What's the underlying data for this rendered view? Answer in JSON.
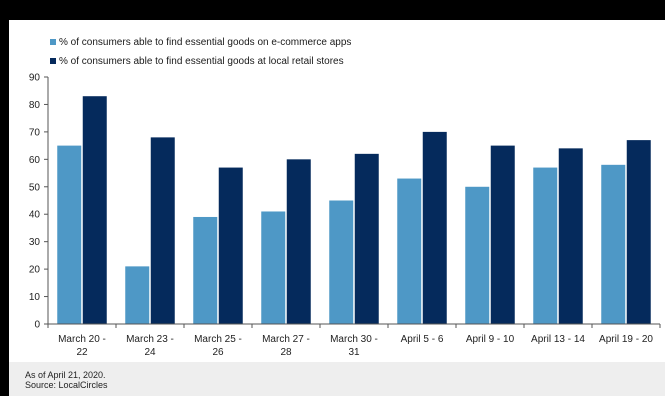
{
  "chart_data": {
    "type": "bar",
    "categories": [
      [
        "March 20 -",
        "22"
      ],
      [
        "March 23 -",
        "24"
      ],
      [
        "March 25 -",
        "26"
      ],
      [
        "March 27 -",
        "28"
      ],
      [
        "March 30 -",
        "31"
      ],
      [
        "April 5 - 6"
      ],
      [
        "April 9 - 10"
      ],
      [
        "April 13 - 14"
      ],
      [
        "April 19 - 20"
      ]
    ],
    "series": [
      {
        "name": "% of consumers able to find essential goods on e-commerce apps",
        "values": [
          65,
          21,
          39,
          41,
          45,
          53,
          50,
          57,
          58
        ]
      },
      {
        "name": "% of consumers able to find essential goods at local retail stores",
        "values": [
          83,
          68,
          57,
          60,
          62,
          70,
          65,
          64,
          67
        ]
      }
    ],
    "yticks": [
      0,
      10,
      20,
      30,
      40,
      50,
      60,
      70,
      80,
      90
    ],
    "ylim": [
      0,
      90
    ],
    "grid": false,
    "legend": "top-left",
    "colors": [
      "#4e98c6",
      "#052a5c"
    ]
  },
  "footer": {
    "note": "As of April 21, 2020.",
    "source": "Source: LocalCircles"
  }
}
